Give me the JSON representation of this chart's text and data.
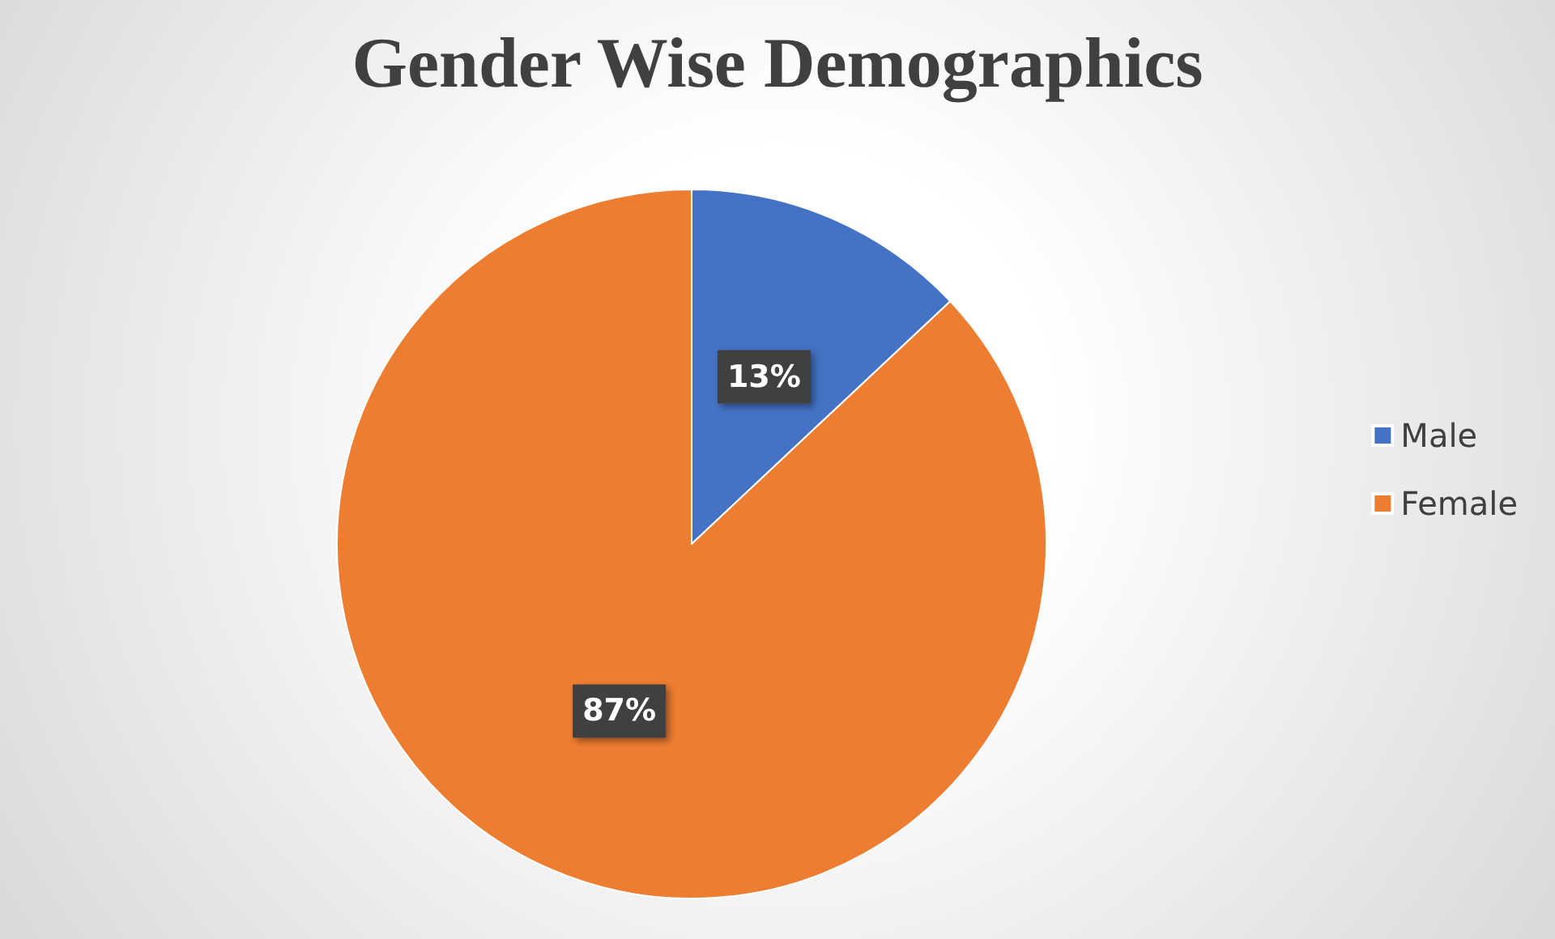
{
  "chart_data": {
    "type": "pie",
    "title": "Gender Wise Demographics",
    "categories": [
      "Male",
      "Female"
    ],
    "values": [
      13,
      87
    ],
    "colors": [
      "#4472c4",
      "#ed7d31"
    ],
    "value_labels": [
      "13%",
      "87%"
    ],
    "legend": "right"
  }
}
